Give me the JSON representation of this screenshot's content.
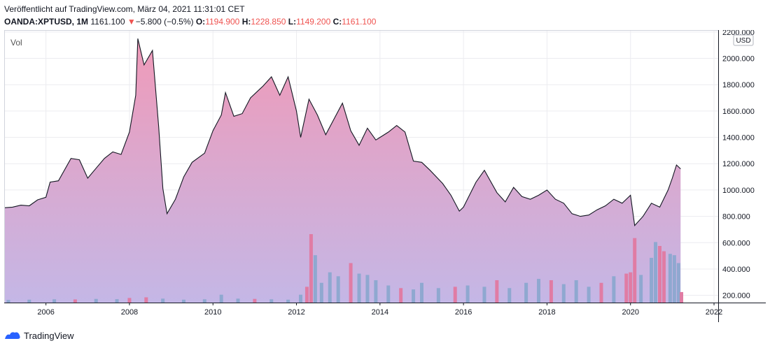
{
  "header": {
    "published": "Veröffentlicht auf TradingView.com, März 04, 2021 11:31:01 CET",
    "symbol": "OANDA:XPTUSD, 1M",
    "last": "1161.100",
    "arrow": "▼",
    "change": "−5.800 (−0.5%)",
    "o_label": "O:",
    "o_value": "1194.900",
    "h_label": "H:",
    "h_value": "1228.850",
    "l_label": "L:",
    "l_value": "1149.200",
    "c_label": "C:",
    "c_value": "1161.100"
  },
  "footer": {
    "brand": "TradingView"
  },
  "colors": {
    "line": "#131722",
    "down": "#ef5350",
    "vol_up": "#8fa8d0",
    "vol_down": "#e07ca4"
  },
  "chart_data": {
    "type": "area",
    "legend": "Vol",
    "currency_badge": "USD",
    "x_ticks": [
      "2006",
      "2008",
      "2010",
      "2012",
      "2014",
      "2016",
      "2018",
      "2020",
      "2022"
    ],
    "y_ticks": [
      "200.000",
      "400.000",
      "600.000",
      "800.000",
      "1000.000",
      "1200.000",
      "1400.000",
      "1600.000",
      "1800.000",
      "2000.000",
      "2200.000"
    ],
    "ylim": [
      145,
      2215
    ],
    "xlim": [
      2005.0,
      2022.1
    ],
    "price": [
      [
        2005.0,
        865
      ],
      [
        2005.2,
        870
      ],
      [
        2005.4,
        885
      ],
      [
        2005.6,
        880
      ],
      [
        2005.8,
        925
      ],
      [
        2006.0,
        945
      ],
      [
        2006.1,
        1060
      ],
      [
        2006.3,
        1070
      ],
      [
        2006.6,
        1240
      ],
      [
        2006.8,
        1230
      ],
      [
        2007.0,
        1090
      ],
      [
        2007.2,
        1165
      ],
      [
        2007.4,
        1240
      ],
      [
        2007.6,
        1290
      ],
      [
        2007.8,
        1270
      ],
      [
        2008.0,
        1440
      ],
      [
        2008.15,
        1720
      ],
      [
        2008.2,
        2150
      ],
      [
        2008.35,
        1950
      ],
      [
        2008.55,
        2060
      ],
      [
        2008.7,
        1480
      ],
      [
        2008.8,
        1010
      ],
      [
        2008.9,
        820
      ],
      [
        2009.1,
        930
      ],
      [
        2009.3,
        1100
      ],
      [
        2009.5,
        1210
      ],
      [
        2009.8,
        1280
      ],
      [
        2010.0,
        1450
      ],
      [
        2010.2,
        1570
      ],
      [
        2010.3,
        1740
      ],
      [
        2010.5,
        1560
      ],
      [
        2010.7,
        1580
      ],
      [
        2010.9,
        1700
      ],
      [
        2011.2,
        1790
      ],
      [
        2011.4,
        1860
      ],
      [
        2011.6,
        1720
      ],
      [
        2011.8,
        1860
      ],
      [
        2012.0,
        1600
      ],
      [
        2012.1,
        1400
      ],
      [
        2012.3,
        1690
      ],
      [
        2012.5,
        1570
      ],
      [
        2012.7,
        1420
      ],
      [
        2012.9,
        1540
      ],
      [
        2013.1,
        1660
      ],
      [
        2013.3,
        1450
      ],
      [
        2013.5,
        1340
      ],
      [
        2013.7,
        1470
      ],
      [
        2013.9,
        1380
      ],
      [
        2014.0,
        1400
      ],
      [
        2014.2,
        1440
      ],
      [
        2014.4,
        1490
      ],
      [
        2014.6,
        1440
      ],
      [
        2014.8,
        1220
      ],
      [
        2015.0,
        1210
      ],
      [
        2015.2,
        1150
      ],
      [
        2015.5,
        1050
      ],
      [
        2015.7,
        960
      ],
      [
        2015.9,
        840
      ],
      [
        2016.0,
        870
      ],
      [
        2016.3,
        1060
      ],
      [
        2016.5,
        1150
      ],
      [
        2016.8,
        980
      ],
      [
        2017.0,
        910
      ],
      [
        2017.2,
        1020
      ],
      [
        2017.4,
        950
      ],
      [
        2017.6,
        930
      ],
      [
        2017.8,
        960
      ],
      [
        2018.0,
        1000
      ],
      [
        2018.2,
        930
      ],
      [
        2018.4,
        900
      ],
      [
        2018.6,
        820
      ],
      [
        2018.8,
        800
      ],
      [
        2019.0,
        810
      ],
      [
        2019.2,
        850
      ],
      [
        2019.4,
        880
      ],
      [
        2019.6,
        930
      ],
      [
        2019.8,
        900
      ],
      [
        2020.0,
        960
      ],
      [
        2020.1,
        730
      ],
      [
        2020.3,
        800
      ],
      [
        2020.5,
        900
      ],
      [
        2020.7,
        870
      ],
      [
        2020.9,
        1000
      ],
      [
        2021.0,
        1090
      ],
      [
        2021.1,
        1190
      ],
      [
        2021.2,
        1161
      ]
    ],
    "volume": [
      [
        2005.1,
        20,
        "up"
      ],
      [
        2005.6,
        22,
        "up"
      ],
      [
        2006.2,
        25,
        "up"
      ],
      [
        2006.7,
        24,
        "down"
      ],
      [
        2007.2,
        28,
        "up"
      ],
      [
        2007.7,
        26,
        "up"
      ],
      [
        2008.0,
        35,
        "down"
      ],
      [
        2008.4,
        40,
        "down"
      ],
      [
        2008.8,
        30,
        "up"
      ],
      [
        2009.3,
        22,
        "up"
      ],
      [
        2009.8,
        25,
        "up"
      ],
      [
        2010.2,
        60,
        "up"
      ],
      [
        2010.6,
        30,
        "up"
      ],
      [
        2011.0,
        28,
        "down"
      ],
      [
        2011.4,
        25,
        "up"
      ],
      [
        2011.8,
        22,
        "up"
      ],
      [
        2012.1,
        60,
        "up"
      ],
      [
        2012.25,
        120,
        "down"
      ],
      [
        2012.35,
        520,
        "down"
      ],
      [
        2012.45,
        360,
        "up"
      ],
      [
        2012.6,
        150,
        "up"
      ],
      [
        2012.8,
        230,
        "up"
      ],
      [
        2013.0,
        200,
        "up"
      ],
      [
        2013.3,
        300,
        "down"
      ],
      [
        2013.5,
        220,
        "up"
      ],
      [
        2013.7,
        210,
        "up"
      ],
      [
        2013.9,
        170,
        "up"
      ],
      [
        2014.2,
        130,
        "up"
      ],
      [
        2014.5,
        110,
        "down"
      ],
      [
        2014.8,
        100,
        "up"
      ],
      [
        2015.0,
        150,
        "up"
      ],
      [
        2015.4,
        110,
        "up"
      ],
      [
        2015.8,
        120,
        "down"
      ],
      [
        2016.1,
        130,
        "up"
      ],
      [
        2016.5,
        120,
        "up"
      ],
      [
        2016.8,
        170,
        "down"
      ],
      [
        2017.1,
        110,
        "up"
      ],
      [
        2017.5,
        150,
        "up"
      ],
      [
        2017.8,
        180,
        "up"
      ],
      [
        2018.1,
        170,
        "down"
      ],
      [
        2018.4,
        140,
        "up"
      ],
      [
        2018.7,
        170,
        "up"
      ],
      [
        2019.0,
        120,
        "up"
      ],
      [
        2019.3,
        150,
        "down"
      ],
      [
        2019.6,
        200,
        "up"
      ],
      [
        2019.9,
        220,
        "down"
      ],
      [
        2020.0,
        230,
        "down"
      ],
      [
        2020.1,
        490,
        "down"
      ],
      [
        2020.25,
        210,
        "up"
      ],
      [
        2020.5,
        340,
        "up"
      ],
      [
        2020.6,
        460,
        "up"
      ],
      [
        2020.7,
        430,
        "down"
      ],
      [
        2020.8,
        390,
        "down"
      ],
      [
        2020.95,
        370,
        "up"
      ],
      [
        2021.05,
        360,
        "up"
      ],
      [
        2021.15,
        300,
        "up"
      ],
      [
        2021.22,
        80,
        "down"
      ]
    ]
  }
}
